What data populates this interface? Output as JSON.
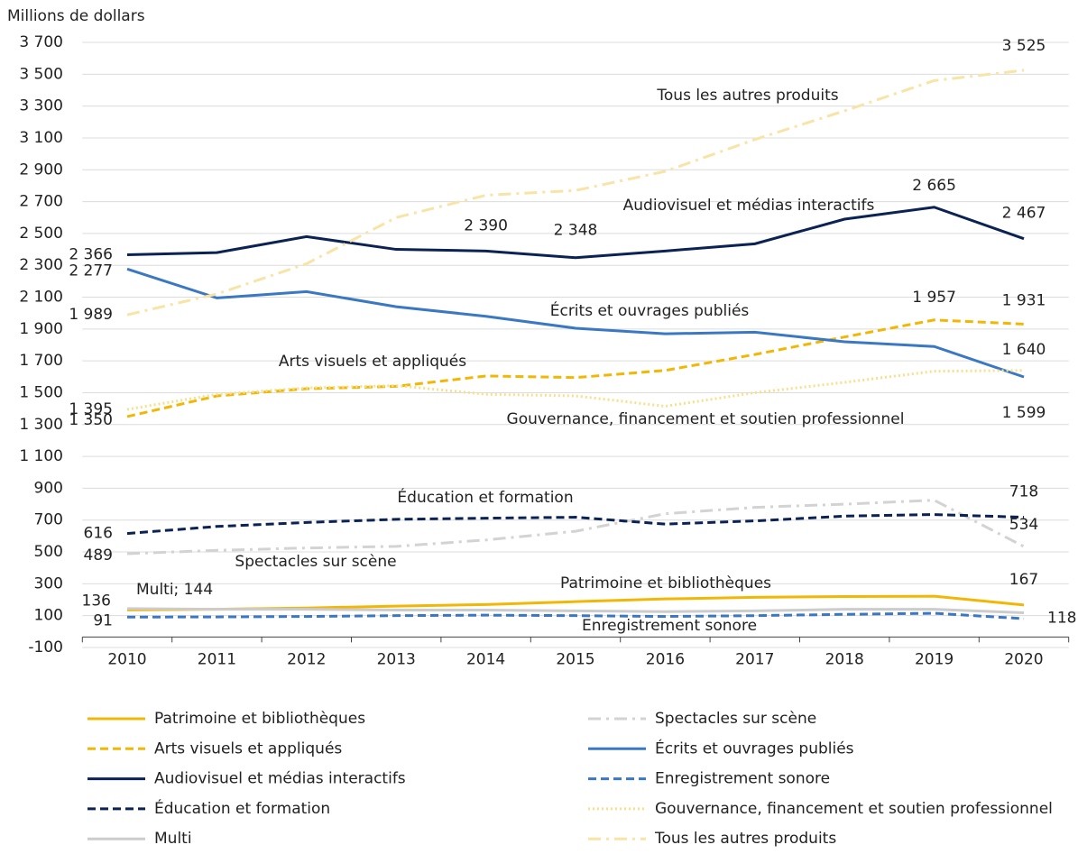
{
  "chart_data": {
    "type": "line",
    "y_label": "Millions de dollars",
    "categories": [
      "2010",
      "2011",
      "2012",
      "2013",
      "2014",
      "2015",
      "2016",
      "2017",
      "2018",
      "2019",
      "2020"
    ],
    "ylim": [
      -100,
      3700
    ],
    "yticks": [
      -100,
      100,
      300,
      500,
      700,
      900,
      {
        "value": 1100,
        "label": "1 100"
      },
      {
        "value": 1300,
        "label": "1 300"
      },
      {
        "value": 1500,
        "label": "1 500"
      },
      {
        "value": 1700,
        "label": "1 700"
      },
      {
        "value": 1900,
        "label": "1 900"
      },
      {
        "value": 2100,
        "label": "2 100"
      },
      {
        "value": 2300,
        "label": "2 300"
      },
      {
        "value": 2500,
        "label": "2 500"
      },
      {
        "value": 2700,
        "label": "2 700"
      },
      {
        "value": 2900,
        "label": "2 900"
      },
      {
        "value": 3100,
        "label": "3 100"
      },
      {
        "value": 3300,
        "label": "3 300"
      },
      {
        "value": 3500,
        "label": "3 500"
      },
      {
        "value": 3700,
        "label": "3 700"
      }
    ],
    "grid": true,
    "legend": "bottom",
    "series": [
      {
        "name": "Patrimoine et bibliothèques",
        "color": "#f2b705",
        "style": "solid",
        "values": [
          136,
          140,
          148,
          160,
          170,
          188,
          205,
          215,
          220,
          222,
          167
        ],
        "value_labels": [
          "136",
          null,
          null,
          null,
          null,
          null,
          null,
          null,
          null,
          null,
          "167"
        ]
      },
      {
        "name": "Spectacles sur scène",
        "color": "#d3d3d3",
        "style": "dashdot",
        "values": [
          489,
          510,
          525,
          535,
          575,
          630,
          740,
          780,
          800,
          825,
          534
        ],
        "value_labels": [
          "489",
          null,
          null,
          null,
          null,
          null,
          null,
          null,
          null,
          null,
          "534"
        ]
      },
      {
        "name": "Arts visuels et appliqués",
        "color": "#f2b705",
        "style": "dashed",
        "values": [
          1350,
          1480,
          1525,
          1540,
          1605,
          1595,
          1640,
          1740,
          1850,
          1957,
          1931
        ],
        "value_labels": [
          "1 350",
          null,
          null,
          null,
          null,
          null,
          null,
          null,
          null,
          "1 957",
          "1 931"
        ]
      },
      {
        "name": "Écrits et ouvrages publiés",
        "color": "#3a78c3",
        "style": "solid",
        "values": [
          2277,
          2095,
          2135,
          2040,
          1980,
          1905,
          1870,
          1880,
          1820,
          1790,
          1599
        ],
        "value_labels": [
          "2 277",
          null,
          null,
          null,
          null,
          null,
          null,
          null,
          null,
          null,
          "1 599"
        ]
      },
      {
        "name": "Audiovisuel et médias interactifs",
        "color": "#0b2354",
        "style": "solid",
        "values": [
          2366,
          2380,
          2480,
          2400,
          2390,
          2348,
          2390,
          2435,
          2590,
          2665,
          2467
        ],
        "value_labels": [
          "2 366",
          null,
          null,
          null,
          "2 390",
          "2 348",
          null,
          null,
          null,
          "2 665",
          "2 467"
        ]
      },
      {
        "name": "Enregistrement sonore",
        "color": "#3a78c3",
        "style": "dashed",
        "values": [
          91,
          92,
          95,
          100,
          103,
          100,
          95,
          100,
          108,
          115,
          81
        ],
        "value_labels": [
          "91",
          null,
          null,
          null,
          null,
          null,
          null,
          null,
          null,
          null,
          null
        ]
      },
      {
        "name": "Éducation et formation",
        "color": "#0b2354",
        "style": "dashed",
        "values": [
          616,
          660,
          685,
          705,
          712,
          718,
          675,
          695,
          725,
          735,
          718
        ],
        "value_labels": [
          "616",
          null,
          null,
          null,
          null,
          null,
          null,
          null,
          null,
          null,
          "718"
        ]
      },
      {
        "name": "Gouvernance, financement et soutien professionnel",
        "color": "#f7e08c",
        "style": "dotted",
        "values": [
          1395,
          1490,
          1530,
          1545,
          1490,
          1480,
          1415,
          1500,
          1565,
          1635,
          1640
        ],
        "value_labels": [
          "1 395",
          null,
          null,
          null,
          null,
          null,
          null,
          null,
          null,
          null,
          "1 640"
        ]
      },
      {
        "name": "Multi",
        "color": "#cccccc",
        "style": "solid",
        "values": [
          144,
          140,
          140,
          135,
          135,
          130,
          125,
          130,
          140,
          140,
          118
        ],
        "value_labels": [
          "Multi; 144",
          null,
          null,
          null,
          null,
          null,
          null,
          null,
          null,
          null,
          "118"
        ]
      },
      {
        "name": "Tous les autres produits",
        "color": "#f8e4a6",
        "style": "dashdot",
        "values": [
          1989,
          2120,
          2310,
          2600,
          2740,
          2770,
          2890,
          3090,
          3270,
          3460,
          3525
        ],
        "value_labels": [
          "1 989",
          null,
          null,
          null,
          null,
          null,
          null,
          null,
          null,
          null,
          "3 525"
        ]
      }
    ]
  }
}
